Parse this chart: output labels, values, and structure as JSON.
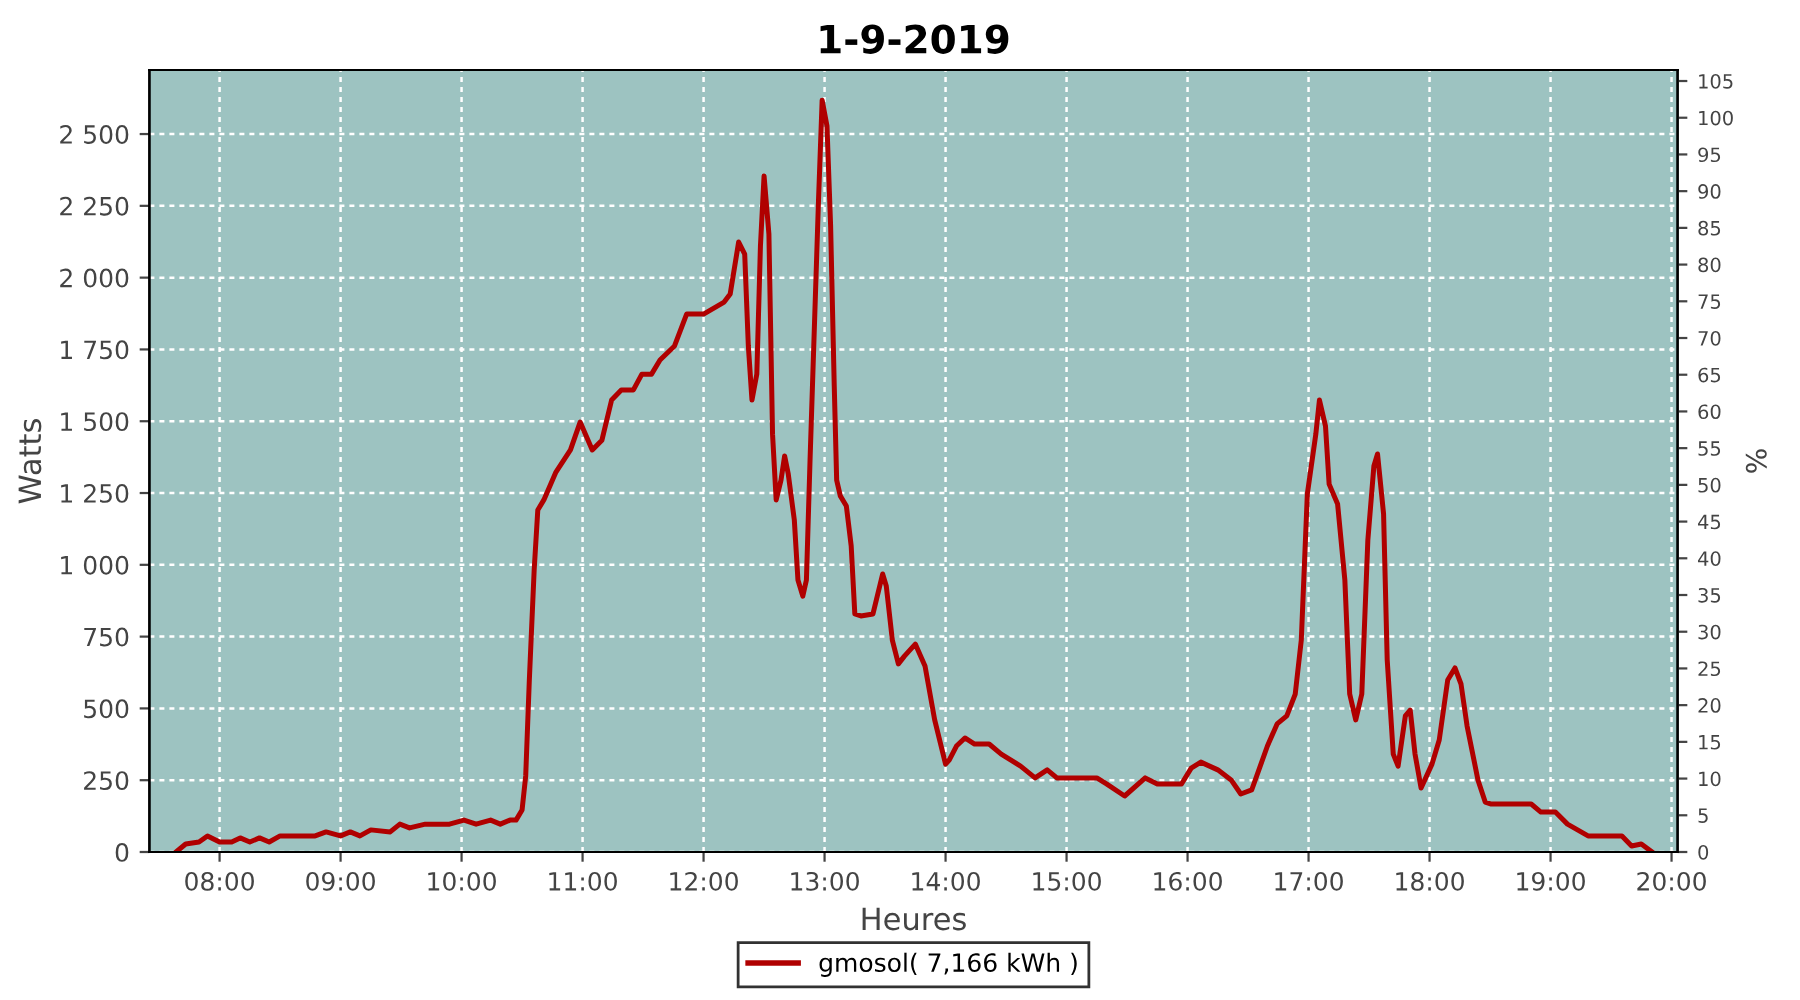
{
  "chart_data": {
    "type": "line",
    "title": "1-9-2019",
    "xlabel": "Heures",
    "ylabel": "Watts",
    "y2label": "%",
    "xlim": [
      7.42,
      20.05
    ],
    "xticks": [
      {
        "value": 8,
        "label": "08:00"
      },
      {
        "value": 9,
        "label": "09:00"
      },
      {
        "value": 10,
        "label": "10:00"
      },
      {
        "value": 11,
        "label": "11:00"
      },
      {
        "value": 12,
        "label": "12:00"
      },
      {
        "value": 13,
        "label": "13:00"
      },
      {
        "value": 14,
        "label": "14:00"
      },
      {
        "value": 15,
        "label": "15:00"
      },
      {
        "value": 16,
        "label": "16:00"
      },
      {
        "value": 17,
        "label": "17:00"
      },
      {
        "value": 18,
        "label": "18:00"
      },
      {
        "value": 19,
        "label": "19:00"
      },
      {
        "value": 20,
        "label": "20:00"
      }
    ],
    "ylim": [
      0,
      2723
    ],
    "yticks": [
      0,
      250,
      500,
      750,
      {
        "value": 1000,
        "label": "1 000"
      },
      {
        "value": 1250,
        "label": "1 250"
      },
      {
        "value": 1500,
        "label": "1 500"
      },
      {
        "value": 1750,
        "label": "1 750"
      },
      {
        "value": 2000,
        "label": "2 000"
      },
      {
        "value": 2250,
        "label": "2 250"
      },
      {
        "value": 2500,
        "label": "2 500"
      }
    ],
    "y2lim": [
      0,
      106.5
    ],
    "y2ticks": [
      0,
      5,
      10,
      15,
      20,
      25,
      30,
      35,
      40,
      45,
      50,
      55,
      60,
      65,
      70,
      75,
      80,
      85,
      90,
      95,
      100,
      105
    ],
    "grid": true,
    "legend": "bottom",
    "line_style": "solid",
    "marker": "none",
    "series": [
      {
        "name": "gmosol( 7,166 kWh )",
        "color": "#b00000",
        "x": [
          7.64,
          7.72,
          7.83,
          7.9,
          8.0,
          8.1,
          8.17,
          8.25,
          8.33,
          8.41,
          8.5,
          8.79,
          8.88,
          9.0,
          9.08,
          9.16,
          9.25,
          9.41,
          9.49,
          9.57,
          9.7,
          9.9,
          10.02,
          10.12,
          10.24,
          10.32,
          10.4,
          10.45,
          10.5,
          10.53,
          10.56,
          10.6,
          10.63,
          10.68,
          10.78,
          10.9,
          10.98,
          11.08,
          11.16,
          11.24,
          11.32,
          11.42,
          11.49,
          11.57,
          11.64,
          11.76,
          11.86,
          12.0,
          12.17,
          12.22,
          12.29,
          12.34,
          12.37,
          12.4,
          12.44,
          12.47,
          12.5,
          12.54,
          12.57,
          12.6,
          12.64,
          12.67,
          12.7,
          12.75,
          12.78,
          12.82,
          12.85,
          12.88,
          12.95,
          12.98,
          13.02,
          13.05,
          13.08,
          13.1,
          13.13,
          13.18,
          13.22,
          13.25,
          13.3,
          13.4,
          13.48,
          13.51,
          13.56,
          13.61,
          13.66,
          13.75,
          13.83,
          13.91,
          14.0,
          14.03,
          14.09,
          14.16,
          14.24,
          14.36,
          14.46,
          14.62,
          14.74,
          14.84,
          14.92,
          15.25,
          15.33,
          15.48,
          15.65,
          15.75,
          15.95,
          16.03,
          16.11,
          16.25,
          16.36,
          16.44,
          16.53,
          16.66,
          16.74,
          16.82,
          16.89,
          16.94,
          16.99,
          17.06,
          17.09,
          17.14,
          17.17,
          17.24,
          17.3,
          17.34,
          17.39,
          17.44,
          17.49,
          17.54,
          17.57,
          17.62,
          17.65,
          17.7,
          17.74,
          17.8,
          17.84,
          17.88,
          17.93,
          18.02,
          18.08,
          18.15,
          18.21,
          18.26,
          18.31,
          18.4,
          18.46,
          18.51,
          18.84,
          18.92,
          19.04,
          19.14,
          19.31,
          19.59,
          19.67,
          19.75,
          19.84
        ],
        "values": [
          0,
          28,
          35,
          56,
          35,
          35,
          49,
          35,
          49,
          35,
          56,
          56,
          70,
          56,
          70,
          56,
          77,
          70,
          97,
          84,
          97,
          97,
          111,
          97,
          111,
          97,
          111,
          111,
          146,
          265,
          599,
          982,
          1191,
          1226,
          1323,
          1400,
          1497,
          1400,
          1434,
          1574,
          1609,
          1609,
          1664,
          1664,
          1713,
          1762,
          1873,
          1873,
          1915,
          1943,
          2124,
          2082,
          1762,
          1574,
          1664,
          2110,
          2354,
          2152,
          1455,
          1226,
          1295,
          1379,
          1316,
          1156,
          947,
          891,
          947,
          1365,
          2270,
          2618,
          2528,
          2180,
          1623,
          1295,
          1240,
          1205,
          1066,
          829,
          822,
          829,
          968,
          926,
          738,
          655,
          682,
          724,
          648,
          460,
          306,
          320,
          369,
          397,
          376,
          376,
          341,
          299,
          258,
          286,
          258,
          258,
          237,
          195,
          258,
          237,
          237,
          292,
          313,
          286,
          251,
          202,
          216,
          369,
          446,
          474,
          550,
          738,
          1247,
          1455,
          1574,
          1483,
          1281,
          1212,
          947,
          550,
          460,
          550,
          1086,
          1344,
          1386,
          1177,
          669,
          341,
          299,
          474,
          494,
          341,
          223,
          306,
          390,
          599,
          641,
          585,
          439,
          251,
          174,
          167,
          167,
          139,
          139,
          97,
          56,
          56,
          21,
          28,
          0
        ]
      }
    ]
  }
}
